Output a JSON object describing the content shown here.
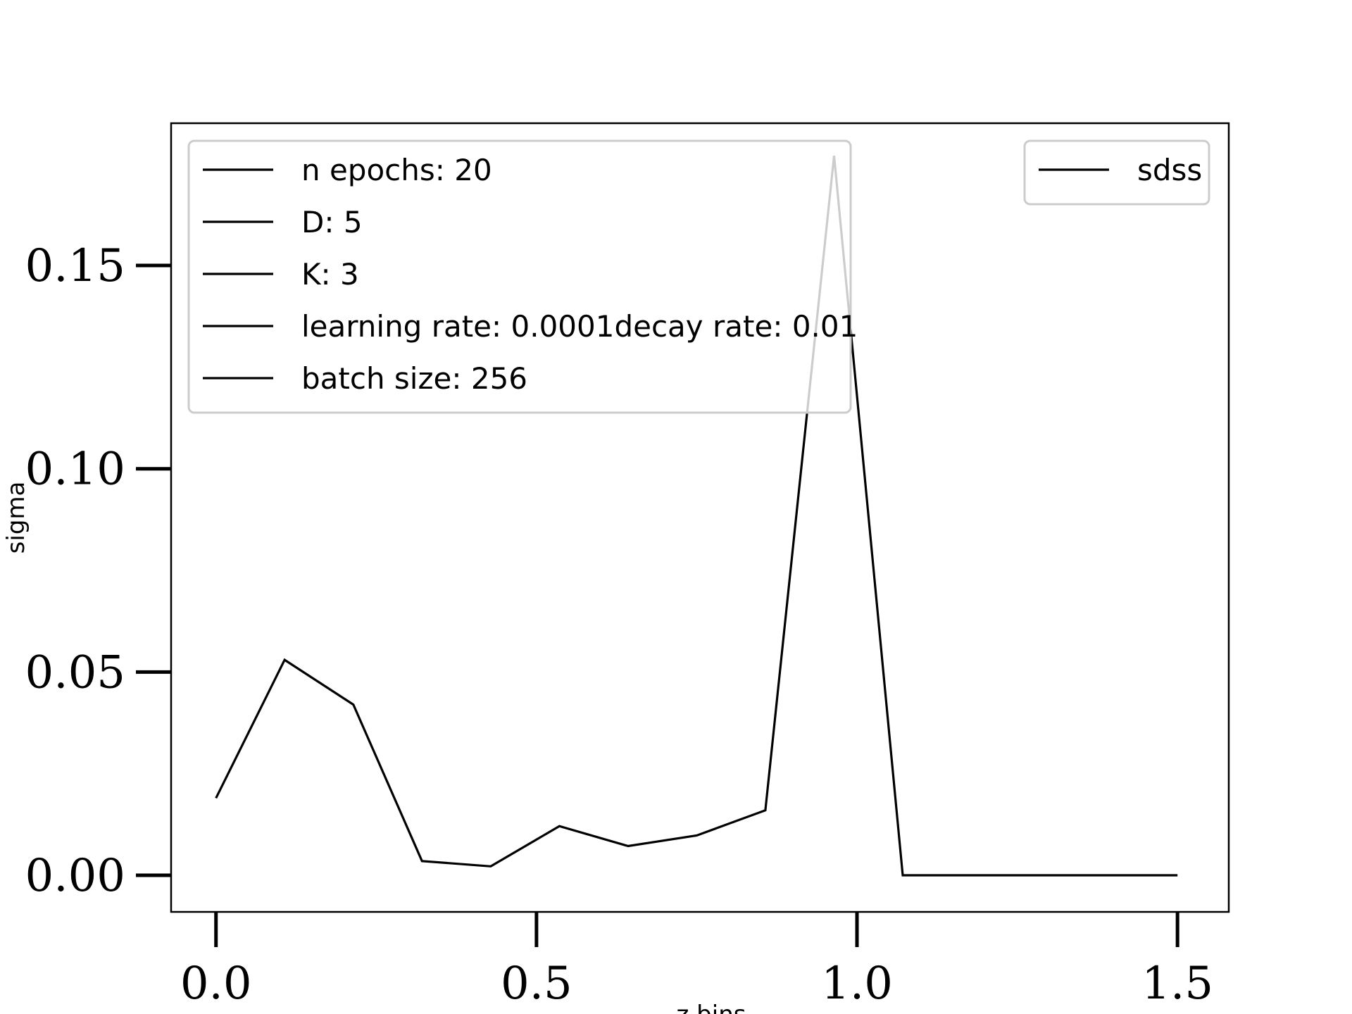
{
  "chart_data": {
    "type": "line",
    "title": "",
    "xlabel": "z bins",
    "ylabel": "sigma",
    "xlim": [
      -0.07,
      1.58
    ],
    "ylim": [
      -0.009,
      0.185
    ],
    "xticks": [
      0.0,
      0.5,
      1.0,
      1.5
    ],
    "xtick_labels": [
      "0.0",
      "0.5",
      "1.0",
      "1.5"
    ],
    "yticks": [
      0.0,
      0.05,
      0.1,
      0.15
    ],
    "ytick_labels": [
      "0.00",
      "0.05",
      "0.10",
      "0.15"
    ],
    "grid": false,
    "series": [
      {
        "name": "sdss",
        "color": "#000000",
        "x": [
          0.0,
          0.1071,
          0.2143,
          0.3214,
          0.4286,
          0.5357,
          0.6429,
          0.75,
          0.8571,
          0.9643,
          1.0714,
          1.1786,
          1.2857,
          1.3929,
          1.5
        ],
        "y": [
          0.019,
          0.053,
          0.042,
          0.0035,
          0.0022,
          0.0121,
          0.0072,
          0.0098,
          0.016,
          0.177,
          0.0,
          0.0,
          0.0,
          0.0,
          0.0
        ]
      }
    ],
    "legends": [
      {
        "placement": "upper-left",
        "entries": [
          {
            "label": "n epochs: 20",
            "color": "#000000"
          },
          {
            "label": "D: 5",
            "color": "#000000"
          },
          {
            "label": "K: 3",
            "color": "#000000"
          },
          {
            "label": "learning rate: 0.0001decay rate: 0.01",
            "color": "#000000"
          },
          {
            "label": "batch size: 256",
            "color": "#000000"
          }
        ]
      },
      {
        "placement": "upper-right",
        "entries": [
          {
            "label": "sdss",
            "color": "#000000"
          }
        ]
      }
    ]
  }
}
